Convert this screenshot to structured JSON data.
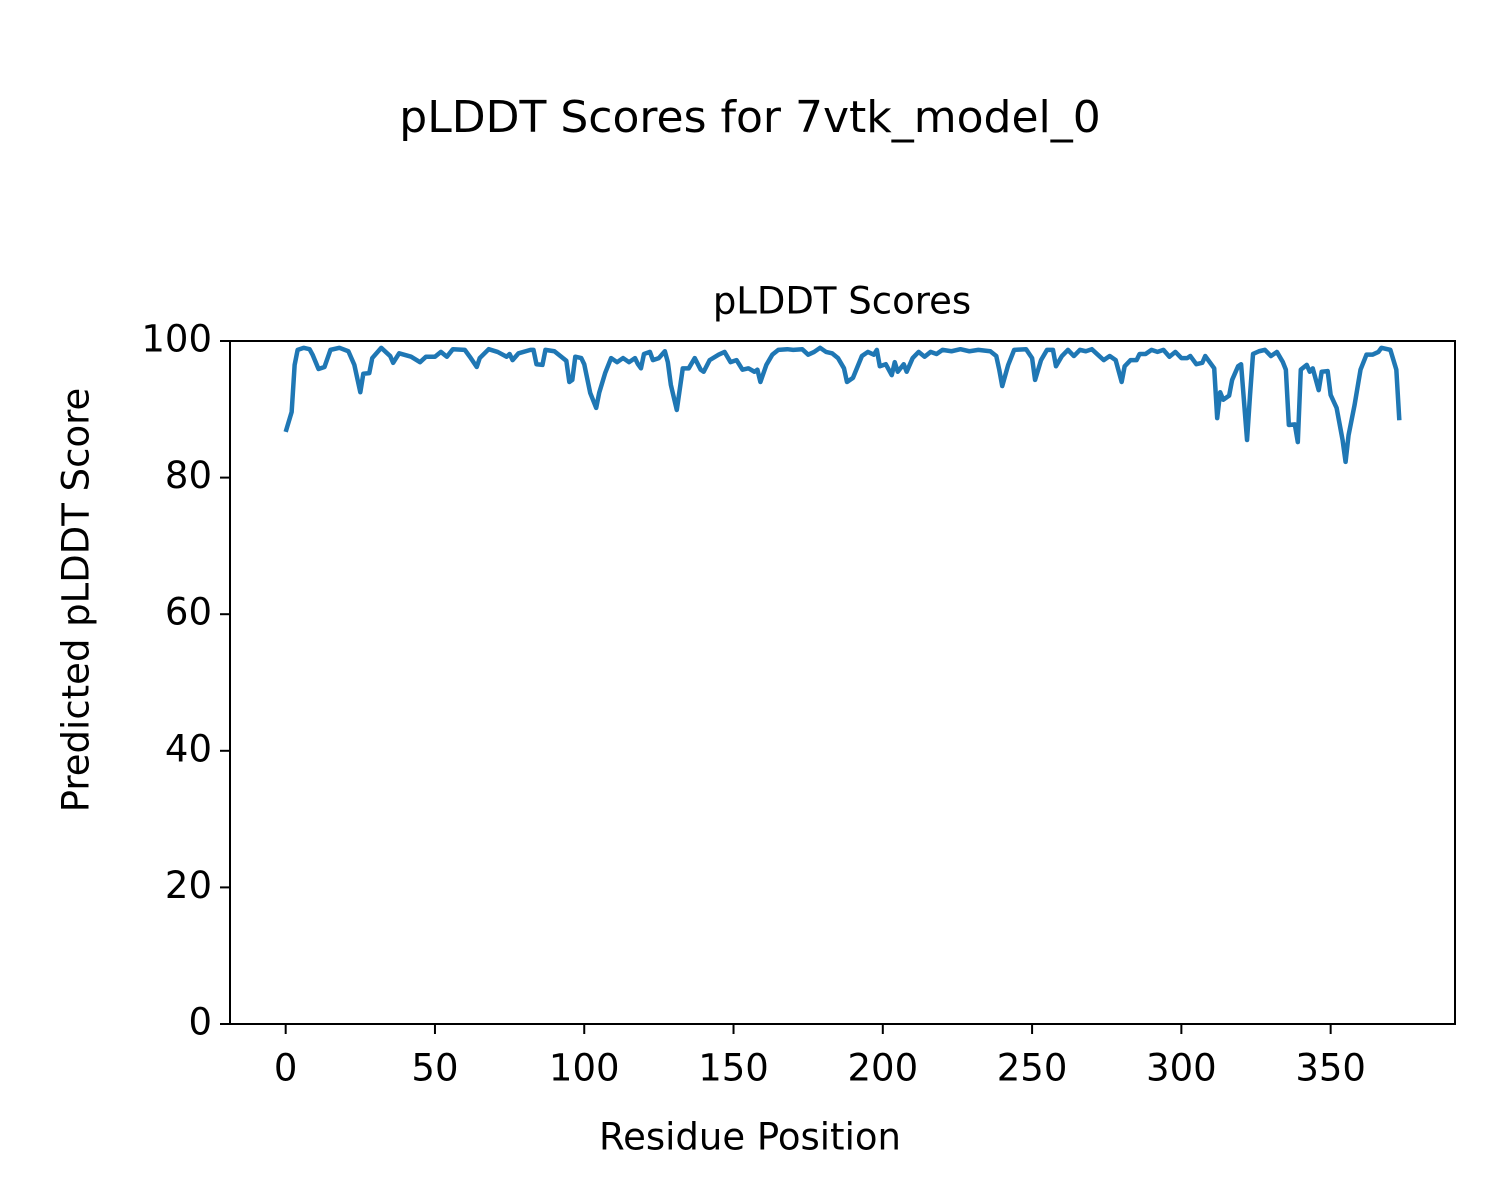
{
  "chart_data": {
    "type": "line",
    "title": "pLDDT Scores for 7vtk_model_0",
    "subtitle": "pLDDT Scores",
    "xlabel": "Residue Position",
    "ylabel": "Predicted pLDDT Score",
    "x": [
      0,
      2,
      3,
      4,
      6,
      8,
      9,
      11,
      13,
      15,
      18,
      21,
      23,
      25,
      26,
      28,
      29,
      32,
      35,
      36,
      38,
      42,
      45,
      47,
      50,
      52,
      54,
      56,
      60,
      62,
      64,
      65,
      68,
      71,
      74,
      75,
      76,
      78,
      82,
      83,
      84,
      86,
      87,
      90,
      92,
      94,
      95,
      96,
      97,
      99,
      100,
      102,
      104,
      105,
      107,
      109,
      111,
      113,
      115,
      117,
      118,
      119,
      120,
      122,
      123,
      125,
      127,
      128,
      129,
      131,
      133,
      135,
      137,
      139,
      140,
      142,
      145,
      147,
      149,
      151,
      153,
      155,
      157,
      158,
      159,
      161,
      163,
      165,
      168,
      170,
      173,
      175,
      177,
      179,
      181,
      183,
      185,
      187,
      188,
      190,
      193,
      195,
      197,
      198,
      199,
      201,
      203,
      204,
      205,
      207,
      208,
      210,
      212,
      214,
      216,
      218,
      220,
      223,
      226,
      229,
      232,
      236,
      238,
      239,
      240,
      242,
      244,
      248,
      250,
      251,
      253,
      255,
      257,
      258,
      260,
      262,
      264,
      266,
      268,
      270,
      272,
      274,
      276,
      278,
      280,
      281,
      283,
      285,
      286,
      288,
      290,
      292,
      294,
      296,
      298,
      300,
      302,
      303,
      305,
      307,
      308,
      311,
      312,
      313,
      314,
      316,
      317,
      319,
      320,
      322,
      323,
      324,
      326,
      328,
      330,
      332,
      334,
      335,
      336,
      338,
      339,
      340,
      342,
      343,
      344,
      346,
      347,
      349,
      350,
      352,
      354,
      355,
      356,
      358,
      360,
      362,
      364,
      366,
      367,
      370,
      372,
      373
    ],
    "series": [
      {
        "name": "pLDDT",
        "color": "#1f77b4",
        "values": [
          86.7,
          89.6,
          96.5,
          98.7,
          99,
          98.8,
          98,
          95.9,
          96.2,
          98.7,
          99,
          98.5,
          96.5,
          92.5,
          95.2,
          95.3,
          97.5,
          99,
          97.8,
          96.8,
          98.2,
          97.7,
          96.9,
          97.7,
          97.7,
          98.4,
          97.7,
          98.8,
          98.7,
          97.5,
          96.2,
          97.5,
          98.8,
          98.4,
          97.7,
          98.1,
          97.2,
          98.2,
          98.7,
          98.7,
          96.6,
          96.5,
          98.7,
          98.5,
          97.8,
          97.1,
          94,
          94.3,
          97.7,
          97.5,
          96.6,
          92.4,
          90.2,
          92.4,
          95.3,
          97.5,
          96.9,
          97.5,
          96.9,
          97.5,
          96.6,
          96,
          98.1,
          98.4,
          97.2,
          97.5,
          98.5,
          96.9,
          93.6,
          89.9,
          96,
          96,
          97.5,
          95.8,
          95.5,
          97.2,
          98,
          98.4,
          96.9,
          97.2,
          95.8,
          96,
          95.5,
          95.8,
          94,
          96.5,
          98,
          98.7,
          98.8,
          98.7,
          98.8,
          98,
          98.4,
          99,
          98.4,
          98.2,
          97.5,
          96,
          94,
          94.6,
          97.8,
          98.4,
          98,
          98.7,
          96.3,
          96.6,
          95,
          96.9,
          95.5,
          96.6,
          95.5,
          97.5,
          98.4,
          97.7,
          98.4,
          98.1,
          98.7,
          98.5,
          98.8,
          98.5,
          98.7,
          98.5,
          97.8,
          95.8,
          93.4,
          96.5,
          98.7,
          98.8,
          97.5,
          94.3,
          97.2,
          98.7,
          98.7,
          96.3,
          97.8,
          98.7,
          97.8,
          98.7,
          98.5,
          98.8,
          98,
          97.2,
          97.8,
          97.2,
          94,
          96.3,
          97.2,
          97.2,
          98.1,
          98.1,
          98.7,
          98.4,
          98.7,
          97.7,
          98.4,
          97.5,
          97.5,
          97.8,
          96.6,
          96.8,
          97.8,
          96,
          88.7,
          92.5,
          91.4,
          92,
          94.3,
          96.3,
          96.6,
          85.5,
          92.1,
          98.1,
          98.5,
          98.7,
          97.8,
          98.4,
          96.9,
          95.8,
          87.7,
          87.8,
          85.2,
          95.8,
          96.5,
          95.5,
          96,
          92.8,
          95.5,
          95.6,
          92.1,
          90.2,
          85.5,
          82.3,
          86.2,
          90.6,
          95.8,
          98,
          98,
          98.4,
          99,
          98.7,
          95.8,
          88.4
        ]
      }
    ],
    "xlim": [
      -18.65,
      391.65
    ],
    "xticks": [
      0,
      50,
      100,
      150,
      200,
      250,
      300,
      350
    ],
    "ylim": [
      0,
      100
    ],
    "yticks": [
      0,
      20,
      40,
      60,
      80,
      100
    ],
    "grid": false
  }
}
